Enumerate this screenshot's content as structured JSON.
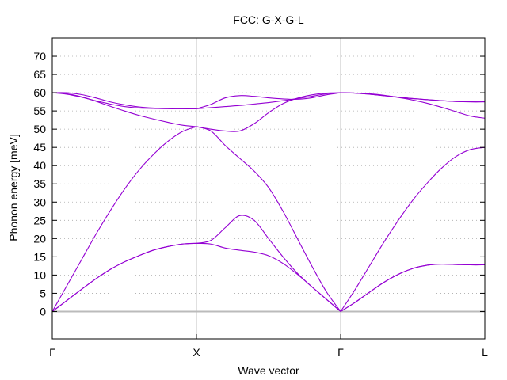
{
  "chart_data": {
    "type": "line",
    "title": "FCC: G-X-G-L",
    "xlabel": "Wave vector",
    "ylabel": "Phonon energy [meV]",
    "ylim": [
      -7.5,
      75
    ],
    "y_ticks": [
      0,
      5,
      10,
      15,
      20,
      25,
      30,
      35,
      40,
      45,
      50,
      55,
      60,
      65,
      70
    ],
    "y_tick_labels": [
      "0",
      "5",
      "10",
      "15",
      "20",
      "25",
      "30",
      "35",
      "40",
      "45",
      "50",
      "55",
      "60",
      "65",
      "70"
    ],
    "x_points": [
      0,
      1,
      2,
      3
    ],
    "x_tick_labels": [
      "Γ",
      "X",
      "Γ",
      "L"
    ],
    "xlim": [
      0,
      3
    ],
    "grid": "dotted-horizontal",
    "line_color": "#9400d3",
    "zero_line_color": "#bbbbbb",
    "vline_color": "#c0c0c0",
    "series": [
      {
        "values": [
          [
            0,
            0
          ],
          [
            0.1,
            3
          ],
          [
            0.2,
            6
          ],
          [
            0.3,
            8.9
          ],
          [
            0.4,
            11.5
          ],
          [
            0.5,
            13.6
          ],
          [
            0.6,
            15.3
          ],
          [
            0.7,
            16.8
          ],
          [
            0.8,
            17.8
          ],
          [
            0.9,
            18.5
          ],
          [
            1,
            18.7
          ],
          [
            1.1,
            18.5
          ],
          [
            1.2,
            17.4
          ],
          [
            1.3,
            16.8
          ],
          [
            1.4,
            16.3
          ],
          [
            1.5,
            15.3
          ],
          [
            1.6,
            13.2
          ],
          [
            1.7,
            10.2
          ],
          [
            1.8,
            6.8
          ],
          [
            1.9,
            3.4
          ],
          [
            2,
            0
          ],
          [
            2.1,
            2.5
          ],
          [
            2.2,
            5.3
          ],
          [
            2.3,
            8
          ],
          [
            2.4,
            10.2
          ],
          [
            2.5,
            11.8
          ],
          [
            2.6,
            12.7
          ],
          [
            2.7,
            13
          ],
          [
            2.8,
            12.9
          ],
          [
            2.9,
            12.8
          ],
          [
            3,
            12.8
          ]
        ]
      },
      {
        "values": [
          [
            0,
            0
          ],
          [
            0.1,
            3
          ],
          [
            0.2,
            6
          ],
          [
            0.3,
            8.9
          ],
          [
            0.4,
            11.5
          ],
          [
            0.5,
            13.6
          ],
          [
            0.6,
            15.3
          ],
          [
            0.7,
            16.8
          ],
          [
            0.8,
            17.8
          ],
          [
            0.9,
            18.5
          ],
          [
            1,
            18.7
          ],
          [
            1.1,
            19.5
          ],
          [
            1.2,
            23
          ],
          [
            1.3,
            26.3
          ],
          [
            1.4,
            25
          ],
          [
            1.5,
            20
          ],
          [
            1.6,
            15
          ],
          [
            1.7,
            10.5
          ],
          [
            1.8,
            6.8
          ],
          [
            1.9,
            3.4
          ],
          [
            2,
            0
          ],
          [
            2.1,
            2.5
          ],
          [
            2.2,
            5.3
          ],
          [
            2.3,
            8
          ],
          [
            2.4,
            10.2
          ],
          [
            2.5,
            11.8
          ],
          [
            2.6,
            12.7
          ],
          [
            2.7,
            13
          ],
          [
            2.8,
            12.9
          ],
          [
            2.9,
            12.8
          ],
          [
            3,
            12.8
          ]
        ]
      },
      {
        "values": [
          [
            0,
            0
          ],
          [
            0.1,
            7
          ],
          [
            0.2,
            14
          ],
          [
            0.3,
            21
          ],
          [
            0.4,
            27.5
          ],
          [
            0.5,
            33.5
          ],
          [
            0.6,
            38.7
          ],
          [
            0.7,
            43
          ],
          [
            0.8,
            46.6
          ],
          [
            0.9,
            49.3
          ],
          [
            1,
            50.7
          ],
          [
            1.1,
            49.5
          ],
          [
            1.2,
            45.5
          ],
          [
            1.3,
            42
          ],
          [
            1.4,
            38.5
          ],
          [
            1.5,
            34
          ],
          [
            1.6,
            27.5
          ],
          [
            1.7,
            20
          ],
          [
            1.8,
            12.5
          ],
          [
            1.9,
            5.5
          ],
          [
            2,
            0
          ],
          [
            2.1,
            6
          ],
          [
            2.2,
            12.5
          ],
          [
            2.3,
            19
          ],
          [
            2.4,
            25
          ],
          [
            2.5,
            30.5
          ],
          [
            2.6,
            35.2
          ],
          [
            2.7,
            39.3
          ],
          [
            2.8,
            42.5
          ],
          [
            2.9,
            44.4
          ],
          [
            3,
            45
          ]
        ]
      },
      {
        "values": [
          [
            0,
            60
          ],
          [
            0.1,
            59.7
          ],
          [
            0.2,
            58.9
          ],
          [
            0.3,
            57.7
          ],
          [
            0.4,
            56.3
          ],
          [
            0.5,
            55
          ],
          [
            0.6,
            53.8
          ],
          [
            0.7,
            52.8
          ],
          [
            0.8,
            51.9
          ],
          [
            0.9,
            51.1
          ],
          [
            1,
            50.7
          ],
          [
            1.1,
            50
          ],
          [
            1.2,
            49.5
          ],
          [
            1.3,
            49.5
          ],
          [
            1.4,
            51.5
          ],
          [
            1.5,
            54.5
          ],
          [
            1.6,
            57
          ],
          [
            1.7,
            58.5
          ],
          [
            1.8,
            59.4
          ],
          [
            1.9,
            59.9
          ],
          [
            2,
            60
          ],
          [
            2.1,
            59.9
          ],
          [
            2.2,
            59.7
          ],
          [
            2.3,
            59.3
          ],
          [
            2.4,
            58.7
          ],
          [
            2.5,
            58
          ],
          [
            2.6,
            57.1
          ],
          [
            2.7,
            56
          ],
          [
            2.8,
            54.8
          ],
          [
            2.9,
            53.6
          ],
          [
            3,
            53
          ]
        ]
      },
      {
        "values": [
          [
            0,
            60
          ],
          [
            0.1,
            59.6
          ],
          [
            0.2,
            58.8
          ],
          [
            0.3,
            57.8
          ],
          [
            0.4,
            56.9
          ],
          [
            0.5,
            56.2
          ],
          [
            0.6,
            55.8
          ],
          [
            0.7,
            55.7
          ],
          [
            0.8,
            55.6
          ],
          [
            0.9,
            55.6
          ],
          [
            1,
            55.6
          ],
          [
            1.1,
            55.9
          ],
          [
            1.2,
            56.2
          ],
          [
            1.3,
            56.5
          ],
          [
            1.4,
            56.9
          ],
          [
            1.5,
            57.3
          ],
          [
            1.6,
            57.8
          ],
          [
            1.7,
            58.4
          ],
          [
            1.8,
            59
          ],
          [
            1.9,
            59.7
          ],
          [
            2,
            60
          ],
          [
            2.1,
            59.9
          ],
          [
            2.2,
            59.6
          ],
          [
            2.3,
            59.2
          ],
          [
            2.4,
            58.8
          ],
          [
            2.5,
            58.4
          ],
          [
            2.6,
            58.1
          ],
          [
            2.7,
            57.8
          ],
          [
            2.8,
            57.6
          ],
          [
            2.9,
            57.5
          ],
          [
            3,
            57.5
          ]
        ]
      },
      {
        "values": [
          [
            0,
            60
          ],
          [
            0.1,
            60
          ],
          [
            0.2,
            59.5
          ],
          [
            0.3,
            58.6
          ],
          [
            0.4,
            57.5
          ],
          [
            0.5,
            56.7
          ],
          [
            0.6,
            56.1
          ],
          [
            0.7,
            55.8
          ],
          [
            0.8,
            55.7
          ],
          [
            0.9,
            55.6
          ],
          [
            1,
            55.6
          ],
          [
            1.1,
            56.8
          ],
          [
            1.2,
            58.6
          ],
          [
            1.3,
            59.2
          ],
          [
            1.4,
            59
          ],
          [
            1.5,
            58.6
          ],
          [
            1.6,
            58.3
          ],
          [
            1.7,
            58.2
          ],
          [
            1.8,
            58.6
          ],
          [
            1.9,
            59.4
          ],
          [
            2,
            60
          ],
          [
            2.1,
            59.9
          ],
          [
            2.2,
            59.6
          ],
          [
            2.3,
            59.2
          ],
          [
            2.4,
            58.8
          ],
          [
            2.5,
            58.4
          ],
          [
            2.6,
            58.1
          ],
          [
            2.7,
            57.8
          ],
          [
            2.8,
            57.6
          ],
          [
            2.9,
            57.5
          ],
          [
            3,
            57.5
          ]
        ]
      }
    ]
  }
}
